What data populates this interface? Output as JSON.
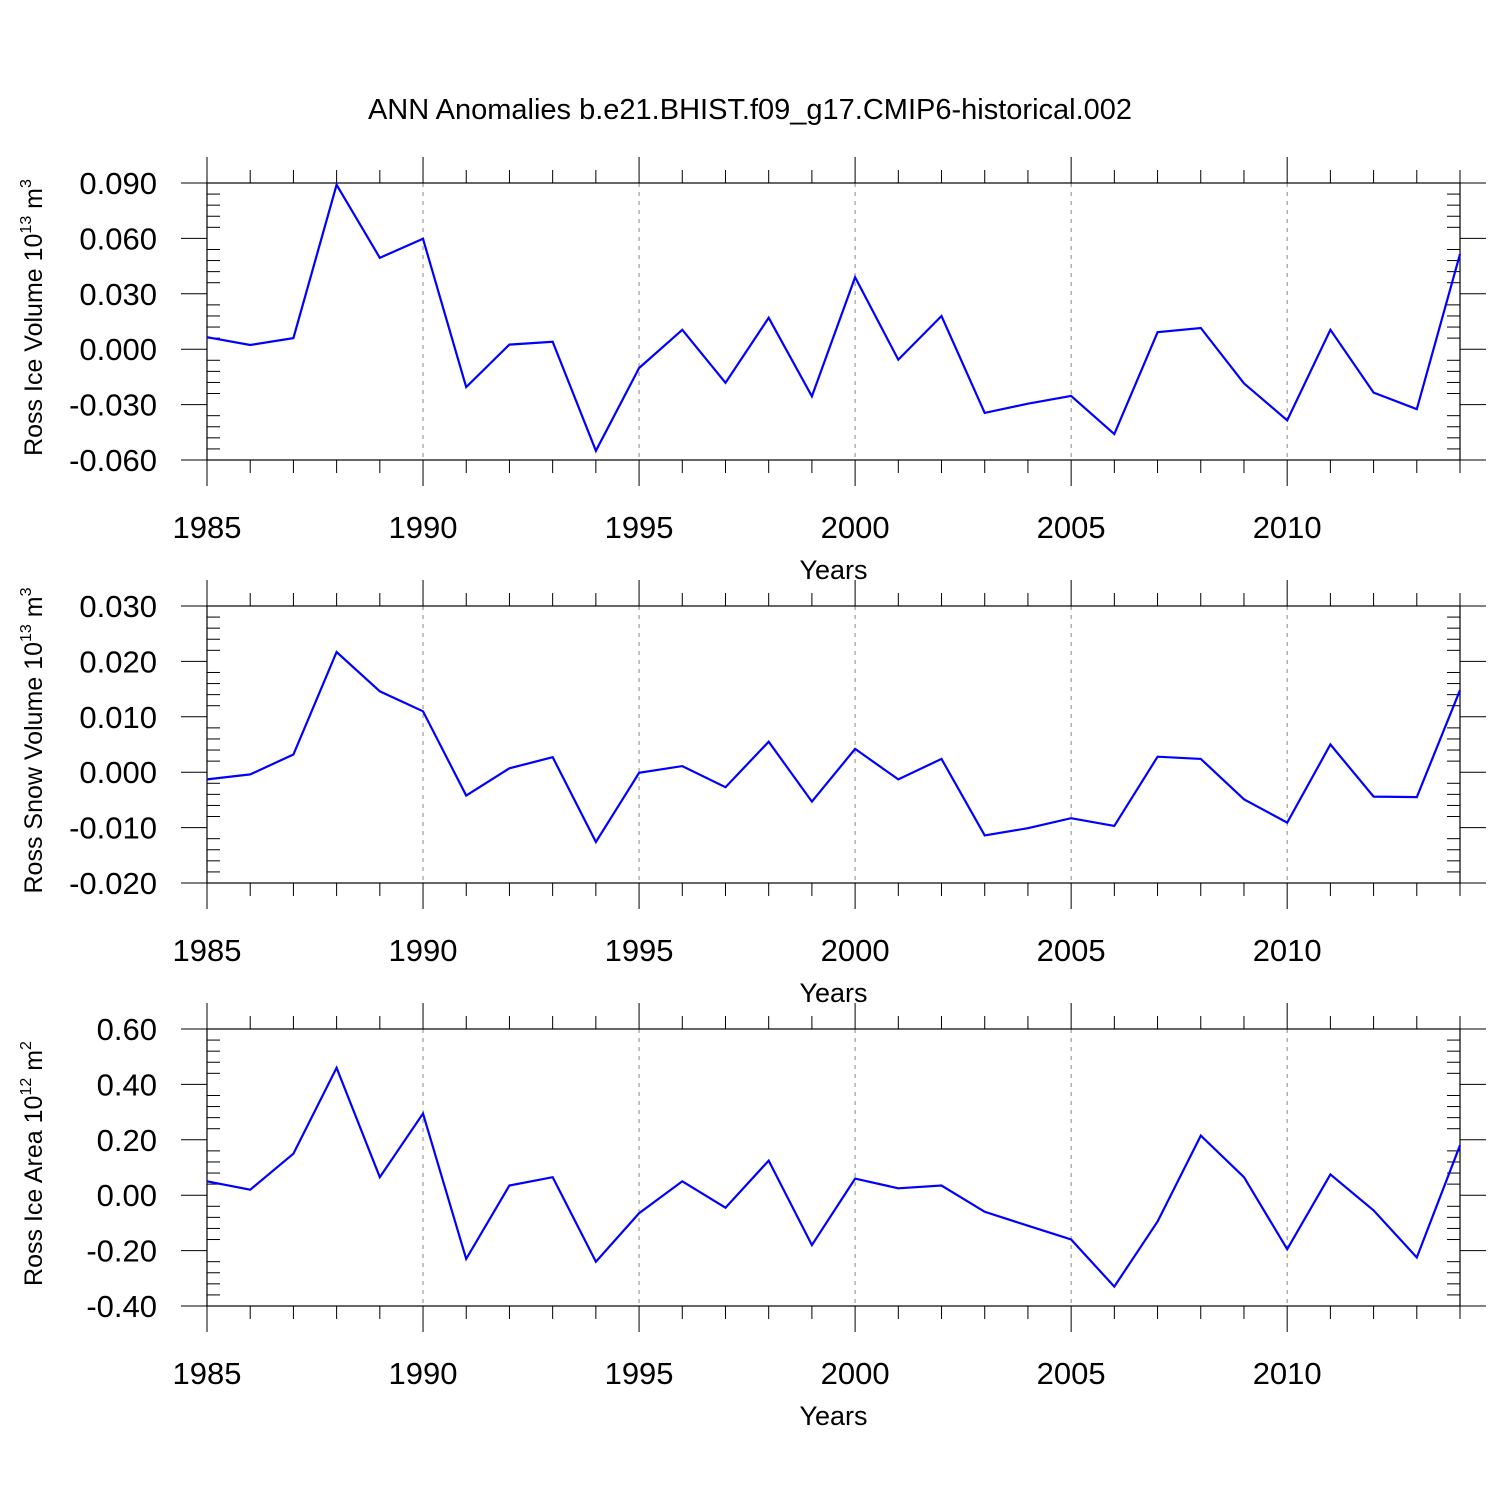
{
  "title": "ANN Anomalies b.e21.BHIST.f09_g17.CMIP6-historical.002",
  "chart_data": [
    {
      "type": "line",
      "title": "ANN Anomalies b.e21.BHIST.f09_g17.CMIP6-historical.002",
      "ylabel": {
        "base": "Ross Ice Volume 10",
        "exp": "13",
        "unit": " m",
        "unit_exp": "3"
      },
      "xlabel": "Years",
      "xlim": [
        1985,
        2014
      ],
      "ylim": [
        -0.06,
        0.09
      ],
      "yticks": [
        -0.06,
        -0.03,
        0.0,
        0.03,
        0.06,
        0.09
      ],
      "ytick_labels": [
        "-0.060",
        "-0.030",
        "0.000",
        "0.030",
        "0.060",
        "0.090"
      ],
      "xticks": [
        1985,
        1990,
        1995,
        2000,
        2005,
        2010
      ],
      "xtick_labels": [
        "1985",
        "1990",
        "1995",
        "2000",
        "2005",
        "2010"
      ],
      "grid": "vertical dashed at labeled years",
      "color": "#0000ff",
      "x": [
        1985,
        1986,
        1987,
        1988,
        1989,
        1990,
        1991,
        1992,
        1993,
        1994,
        1995,
        1996,
        1997,
        1998,
        1999,
        2000,
        2001,
        2002,
        2003,
        2004,
        2005,
        2006,
        2007,
        2008,
        2009,
        2010,
        2011,
        2012,
        2013,
        2014
      ],
      "values": [
        0.0065,
        0.0023,
        0.006,
        0.089,
        0.0495,
        0.0598,
        -0.0205,
        0.0025,
        0.004,
        -0.055,
        -0.0102,
        0.0105,
        -0.0182,
        0.017,
        -0.0255,
        0.039,
        -0.0057,
        0.018,
        -0.0345,
        -0.0295,
        -0.0253,
        -0.046,
        0.0092,
        0.0115,
        -0.0185,
        -0.0385,
        0.0105,
        -0.0235,
        -0.0325,
        0.0515
      ]
    },
    {
      "type": "line",
      "ylabel": {
        "base": "Ross Snow Volume 10",
        "exp": "13",
        "unit": " m",
        "unit_exp": "3"
      },
      "xlabel": "Years",
      "xlim": [
        1985,
        2014
      ],
      "ylim": [
        -0.02,
        0.03
      ],
      "yticks": [
        -0.02,
        -0.01,
        0.0,
        0.01,
        0.02,
        0.03
      ],
      "ytick_labels": [
        "-0.020",
        "-0.010",
        "0.000",
        "0.010",
        "0.020",
        "0.030"
      ],
      "xticks": [
        1985,
        1990,
        1995,
        2000,
        2005,
        2010
      ],
      "xtick_labels": [
        "1985",
        "1990",
        "1995",
        "2000",
        "2005",
        "2010"
      ],
      "grid": "vertical dashed at labeled years",
      "color": "#0000ff",
      "x": [
        1985,
        1986,
        1987,
        1988,
        1989,
        1990,
        1991,
        1992,
        1993,
        1994,
        1995,
        1996,
        1997,
        1998,
        1999,
        2000,
        2001,
        2002,
        2003,
        2004,
        2005,
        2006,
        2007,
        2008,
        2009,
        2010,
        2011,
        2012,
        2013,
        2014
      ],
      "values": [
        -0.0013,
        -0.0004,
        0.0032,
        0.0217,
        0.0146,
        0.011,
        -0.0042,
        0.0007,
        0.0027,
        -0.0126,
        -0.0001,
        0.0011,
        -0.0027,
        0.0055,
        -0.0053,
        0.0042,
        -0.0013,
        0.0024,
        -0.0114,
        -0.0101,
        -0.0083,
        -0.0097,
        0.0028,
        0.0024,
        -0.0049,
        -0.0091,
        0.005,
        -0.0044,
        -0.0045,
        0.0148
      ]
    },
    {
      "type": "line",
      "ylabel": {
        "base": "Ross Ice Area 10",
        "exp": "12",
        "unit": " m",
        "unit_exp": "2"
      },
      "xlabel": "Years",
      "xlim": [
        1985,
        2014
      ],
      "ylim": [
        -0.4,
        0.6
      ],
      "yticks": [
        -0.4,
        -0.2,
        0.0,
        0.2,
        0.4,
        0.6
      ],
      "ytick_labels": [
        "-0.40",
        "-0.20",
        "0.00",
        "0.20",
        "0.40",
        "0.60"
      ],
      "xticks": [
        1985,
        1990,
        1995,
        2000,
        2005,
        2010
      ],
      "xtick_labels": [
        "1985",
        "1990",
        "1995",
        "2000",
        "2005",
        "2010"
      ],
      "grid": "vertical dashed at labeled years",
      "color": "#0000ff",
      "x": [
        1985,
        1986,
        1987,
        1988,
        1989,
        1990,
        1991,
        1992,
        1993,
        1994,
        1995,
        1996,
        1997,
        1998,
        1999,
        2000,
        2001,
        2002,
        2003,
        2004,
        2005,
        2006,
        2007,
        2008,
        2009,
        2010,
        2011,
        2012,
        2013,
        2014
      ],
      "values": [
        0.05,
        0.02,
        0.15,
        0.46,
        0.065,
        0.295,
        -0.23,
        0.035,
        0.065,
        -0.24,
        -0.065,
        0.05,
        -0.045,
        0.125,
        -0.18,
        0.06,
        0.025,
        0.035,
        -0.06,
        -0.11,
        -0.16,
        -0.33,
        -0.095,
        0.215,
        0.065,
        -0.195,
        0.075,
        -0.055,
        -0.225,
        0.18
      ]
    }
  ]
}
